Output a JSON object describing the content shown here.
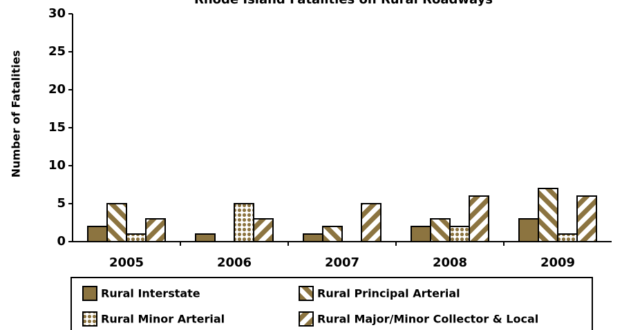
{
  "chart_data": {
    "type": "bar",
    "title": "Rhode Island Fatalities on Rural Roadways",
    "ylabel": "Number of Fatalities",
    "categories": [
      "2005",
      "2006",
      "2007",
      "2008",
      "2009"
    ],
    "series": [
      {
        "name": "Rural Interstate",
        "color": "#8c7440",
        "pattern": "solid",
        "values": [
          2,
          1,
          1,
          2,
          3
        ]
      },
      {
        "name": "Rural Principal Arterial",
        "color": "#8c7440",
        "pattern": "backslash",
        "values": [
          5,
          0,
          2,
          3,
          7
        ]
      },
      {
        "name": "Rural Minor Arterial",
        "color": "#8c7440",
        "pattern": "dots",
        "values": [
          1,
          5,
          0,
          2,
          1
        ]
      },
      {
        "name": "Rural Major/Minor Collector & Local",
        "color": "#8c7440",
        "pattern": "slash",
        "values": [
          3,
          3,
          5,
          6,
          6
        ]
      }
    ],
    "ylim": [
      0,
      30
    ],
    "yticks": [
      0,
      5,
      10,
      15,
      20,
      25,
      30
    ]
  }
}
